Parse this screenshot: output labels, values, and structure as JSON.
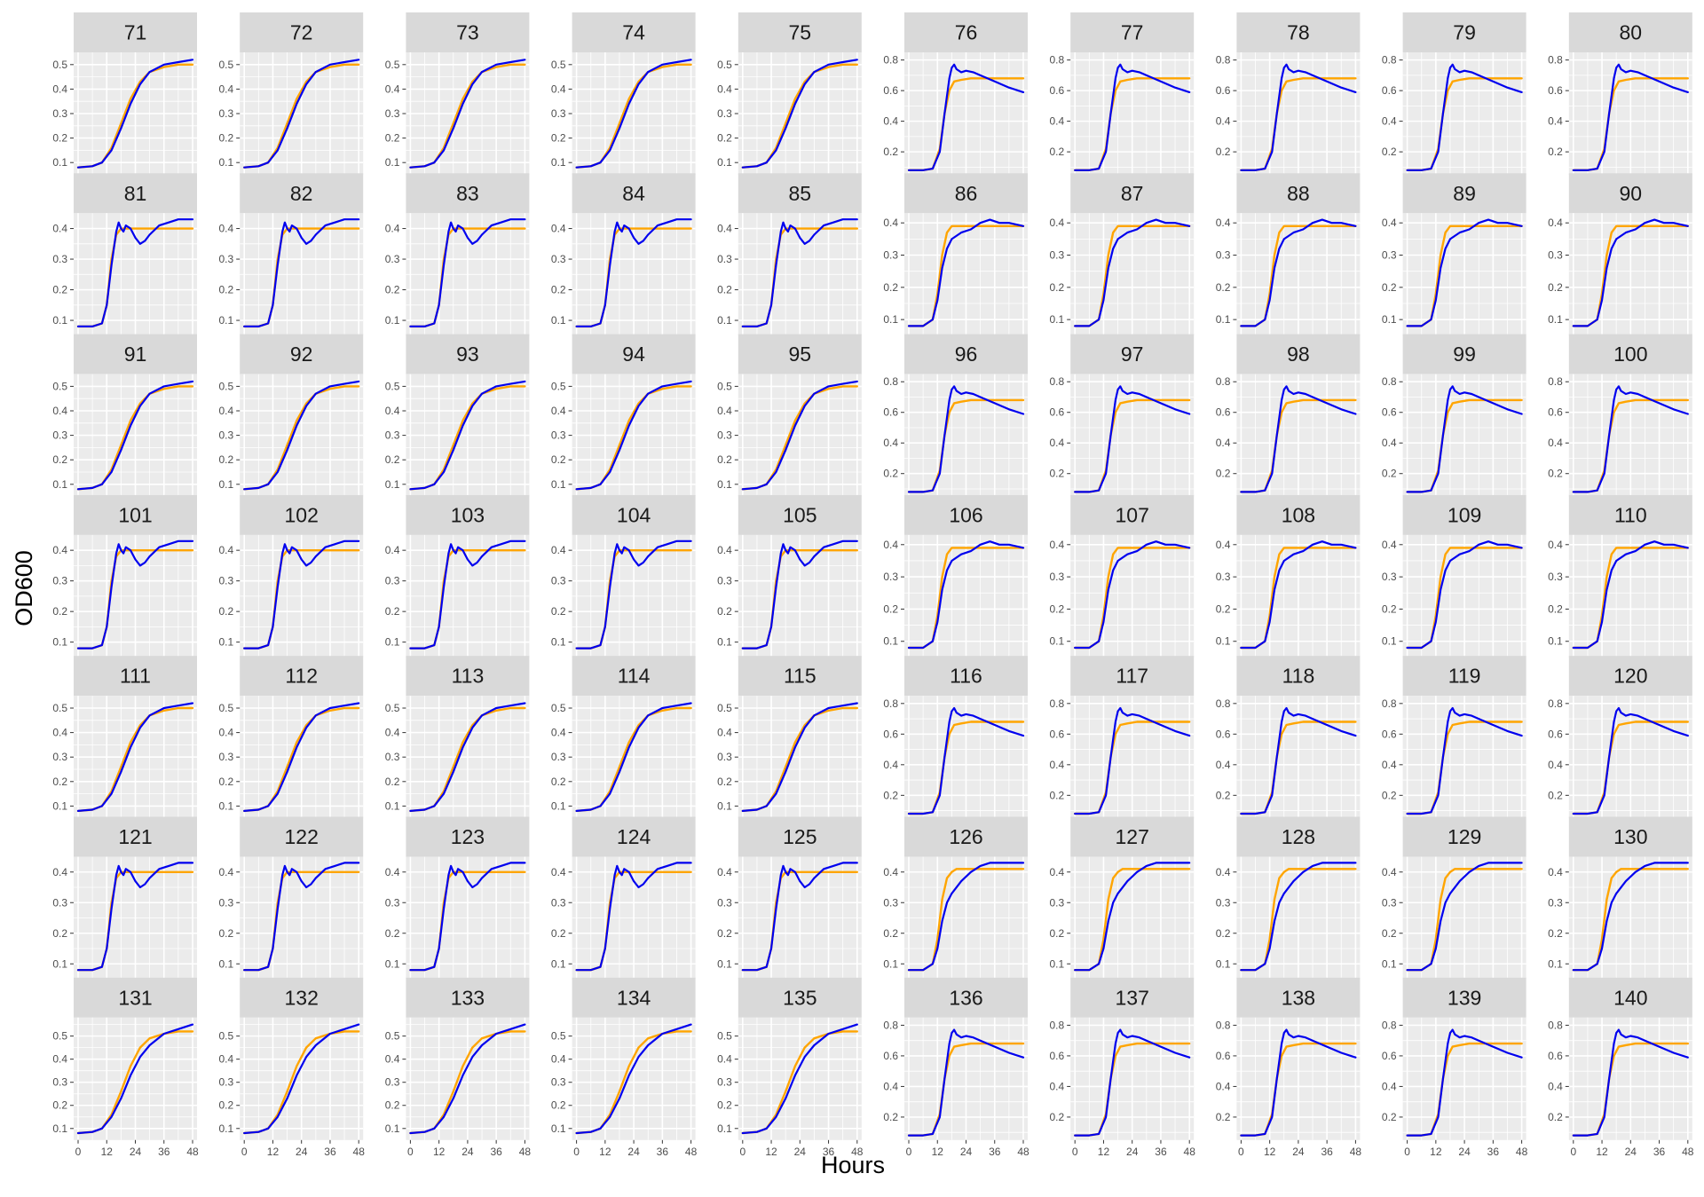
{
  "chart_data": {
    "type": "line",
    "layout": "facet grid, 10 columns x 7 rows",
    "xlabel": "Hours",
    "ylabel": "OD600",
    "x_ticks": [
      0,
      12,
      24,
      36,
      48
    ],
    "xlim": [
      0,
      48
    ],
    "grid": true,
    "legend": "none",
    "colors": {
      "observed": "#0000ee",
      "fit": "#ffa500",
      "panel_background": "#ebebeb",
      "strip_background": "#d9d9d9",
      "gridline": "#ffffff"
    },
    "panel_types": {
      "A": {
        "ylim": [
          0.05,
          0.55
        ],
        "y_ticks": [
          0.1,
          0.2,
          0.3,
          0.4,
          0.5
        ],
        "observed": {
          "x": [
            0,
            6,
            10,
            14,
            18,
            22,
            26,
            30,
            36,
            42,
            48
          ],
          "y": [
            0.08,
            0.085,
            0.1,
            0.15,
            0.24,
            0.34,
            0.42,
            0.47,
            0.5,
            0.51,
            0.52
          ]
        },
        "fit": {
          "x": [
            0,
            6,
            10,
            14,
            18,
            22,
            26,
            30,
            36,
            42,
            48
          ],
          "y": [
            0.08,
            0.085,
            0.1,
            0.16,
            0.26,
            0.36,
            0.43,
            0.47,
            0.49,
            0.5,
            0.5
          ]
        }
      },
      "B": {
        "ylim": [
          0.05,
          0.85
        ],
        "y_ticks": [
          0.2,
          0.4,
          0.6,
          0.8
        ],
        "observed": {
          "x": [
            0,
            6,
            10,
            13,
            15,
            17,
            18,
            19,
            20,
            22,
            24,
            27,
            30,
            36,
            42,
            48
          ],
          "y": [
            0.08,
            0.08,
            0.09,
            0.2,
            0.45,
            0.68,
            0.75,
            0.77,
            0.74,
            0.72,
            0.73,
            0.72,
            0.7,
            0.66,
            0.62,
            0.59
          ]
        },
        "fit": {
          "x": [
            0,
            6,
            10,
            13,
            15,
            17,
            19,
            22,
            26,
            30,
            36,
            42,
            48
          ],
          "y": [
            0.08,
            0.08,
            0.09,
            0.22,
            0.45,
            0.6,
            0.66,
            0.67,
            0.68,
            0.68,
            0.68,
            0.68,
            0.68
          ]
        }
      },
      "C": {
        "ylim": [
          0.05,
          0.45
        ],
        "y_ticks": [
          0.1,
          0.2,
          0.3,
          0.4
        ],
        "observed": {
          "x": [
            0,
            6,
            10,
            12,
            14,
            16,
            17,
            18,
            19,
            20,
            22,
            24,
            26,
            28,
            30,
            34,
            38,
            42,
            48
          ],
          "y": [
            0.08,
            0.08,
            0.09,
            0.15,
            0.28,
            0.39,
            0.42,
            0.4,
            0.39,
            0.41,
            0.4,
            0.37,
            0.35,
            0.36,
            0.38,
            0.41,
            0.42,
            0.43,
            0.43
          ]
        },
        "fit": {
          "x": [
            0,
            6,
            10,
            12,
            14,
            16,
            18,
            20,
            24,
            30,
            36,
            42,
            48
          ],
          "y": [
            0.08,
            0.08,
            0.09,
            0.15,
            0.3,
            0.38,
            0.4,
            0.4,
            0.4,
            0.4,
            0.4,
            0.4,
            0.4
          ]
        }
      },
      "D": {
        "ylim": [
          0.05,
          0.43
        ],
        "y_ticks": [
          0.1,
          0.2,
          0.3,
          0.4
        ],
        "observed": {
          "x": [
            0,
            6,
            10,
            12,
            14,
            16,
            18,
            22,
            26,
            30,
            34,
            38,
            42,
            48
          ],
          "y": [
            0.08,
            0.08,
            0.1,
            0.16,
            0.26,
            0.32,
            0.35,
            0.37,
            0.38,
            0.4,
            0.41,
            0.4,
            0.4,
            0.39
          ]
        },
        "fit": {
          "x": [
            0,
            6,
            10,
            12,
            14,
            16,
            18,
            20,
            24,
            30,
            36,
            42,
            48
          ],
          "y": [
            0.08,
            0.08,
            0.1,
            0.18,
            0.3,
            0.37,
            0.39,
            0.39,
            0.39,
            0.39,
            0.39,
            0.39,
            0.39
          ]
        }
      },
      "E": {
        "ylim": [
          0.05,
          0.45
        ],
        "y_ticks": [
          0.1,
          0.2,
          0.3,
          0.4
        ],
        "observed": {
          "x": [
            0,
            6,
            10,
            12,
            14,
            16,
            18,
            22,
            26,
            30,
            34,
            38,
            42,
            48
          ],
          "y": [
            0.08,
            0.08,
            0.1,
            0.15,
            0.24,
            0.3,
            0.33,
            0.37,
            0.4,
            0.42,
            0.43,
            0.43,
            0.43,
            0.43
          ]
        },
        "fit": {
          "x": [
            0,
            6,
            10,
            12,
            14,
            16,
            18,
            20,
            24,
            30,
            36,
            42,
            48
          ],
          "y": [
            0.08,
            0.08,
            0.1,
            0.18,
            0.31,
            0.38,
            0.4,
            0.41,
            0.41,
            0.41,
            0.41,
            0.41,
            0.41
          ]
        }
      },
      "F": {
        "ylim": [
          0.05,
          0.58
        ],
        "y_ticks": [
          0.1,
          0.2,
          0.3,
          0.4,
          0.5
        ],
        "observed": {
          "x": [
            0,
            6,
            10,
            14,
            18,
            22,
            26,
            30,
            36,
            42,
            48
          ],
          "y": [
            0.08,
            0.085,
            0.1,
            0.15,
            0.23,
            0.33,
            0.41,
            0.46,
            0.51,
            0.53,
            0.55
          ]
        },
        "fit": {
          "x": [
            0,
            6,
            10,
            14,
            18,
            22,
            26,
            30,
            36,
            42,
            48
          ],
          "y": [
            0.08,
            0.085,
            0.1,
            0.16,
            0.26,
            0.37,
            0.45,
            0.49,
            0.51,
            0.52,
            0.52
          ]
        }
      }
    },
    "panels": [
      {
        "title": "71",
        "type": "A"
      },
      {
        "title": "72",
        "type": "A"
      },
      {
        "title": "73",
        "type": "A"
      },
      {
        "title": "74",
        "type": "A"
      },
      {
        "title": "75",
        "type": "A"
      },
      {
        "title": "76",
        "type": "B"
      },
      {
        "title": "77",
        "type": "B"
      },
      {
        "title": "78",
        "type": "B"
      },
      {
        "title": "79",
        "type": "B"
      },
      {
        "title": "80",
        "type": "B"
      },
      {
        "title": "81",
        "type": "C"
      },
      {
        "title": "82",
        "type": "C"
      },
      {
        "title": "83",
        "type": "C"
      },
      {
        "title": "84",
        "type": "C"
      },
      {
        "title": "85",
        "type": "C"
      },
      {
        "title": "86",
        "type": "D"
      },
      {
        "title": "87",
        "type": "D"
      },
      {
        "title": "88",
        "type": "D"
      },
      {
        "title": "89",
        "type": "D"
      },
      {
        "title": "90",
        "type": "D"
      },
      {
        "title": "91",
        "type": "A"
      },
      {
        "title": "92",
        "type": "A"
      },
      {
        "title": "93",
        "type": "A"
      },
      {
        "title": "94",
        "type": "A"
      },
      {
        "title": "95",
        "type": "A"
      },
      {
        "title": "96",
        "type": "B"
      },
      {
        "title": "97",
        "type": "B"
      },
      {
        "title": "98",
        "type": "B"
      },
      {
        "title": "99",
        "type": "B"
      },
      {
        "title": "100",
        "type": "B"
      },
      {
        "title": "101",
        "type": "C"
      },
      {
        "title": "102",
        "type": "C"
      },
      {
        "title": "103",
        "type": "C"
      },
      {
        "title": "104",
        "type": "C"
      },
      {
        "title": "105",
        "type": "C"
      },
      {
        "title": "106",
        "type": "D"
      },
      {
        "title": "107",
        "type": "D"
      },
      {
        "title": "108",
        "type": "D"
      },
      {
        "title": "109",
        "type": "D"
      },
      {
        "title": "110",
        "type": "D"
      },
      {
        "title": "111",
        "type": "A"
      },
      {
        "title": "112",
        "type": "A"
      },
      {
        "title": "113",
        "type": "A"
      },
      {
        "title": "114",
        "type": "A"
      },
      {
        "title": "115",
        "type": "A"
      },
      {
        "title": "116",
        "type": "B"
      },
      {
        "title": "117",
        "type": "B"
      },
      {
        "title": "118",
        "type": "B"
      },
      {
        "title": "119",
        "type": "B"
      },
      {
        "title": "120",
        "type": "B"
      },
      {
        "title": "121",
        "type": "C"
      },
      {
        "title": "122",
        "type": "C"
      },
      {
        "title": "123",
        "type": "C"
      },
      {
        "title": "124",
        "type": "C"
      },
      {
        "title": "125",
        "type": "C"
      },
      {
        "title": "126",
        "type": "E"
      },
      {
        "title": "127",
        "type": "E"
      },
      {
        "title": "128",
        "type": "E"
      },
      {
        "title": "129",
        "type": "E"
      },
      {
        "title": "130",
        "type": "E"
      },
      {
        "title": "131",
        "type": "F"
      },
      {
        "title": "132",
        "type": "F"
      },
      {
        "title": "133",
        "type": "F"
      },
      {
        "title": "134",
        "type": "F"
      },
      {
        "title": "135",
        "type": "F"
      },
      {
        "title": "136",
        "type": "B"
      },
      {
        "title": "137",
        "type": "B"
      },
      {
        "title": "138",
        "type": "B"
      },
      {
        "title": "139",
        "type": "B"
      },
      {
        "title": "140",
        "type": "B"
      }
    ]
  }
}
